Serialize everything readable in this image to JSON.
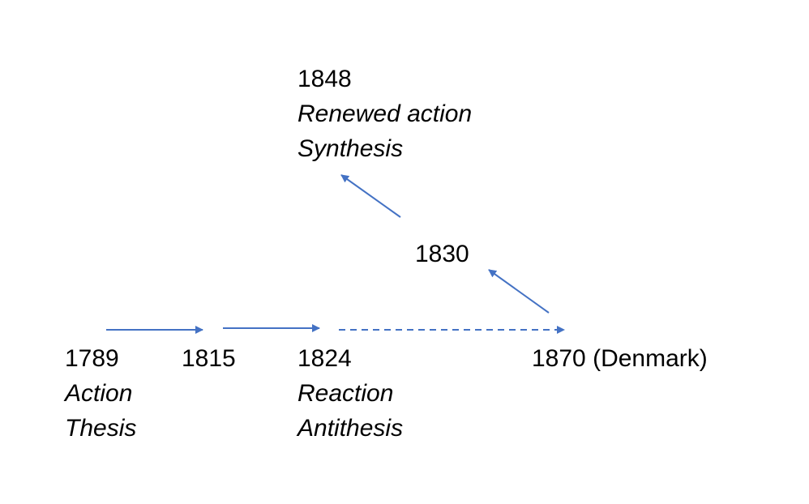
{
  "diagram": {
    "arrow_color": "#4472C4",
    "nodes": {
      "n1789": {
        "year": "1789",
        "line2": "Action",
        "line3": "Thesis"
      },
      "n1815": {
        "year": "1815"
      },
      "n1824": {
        "year": "1824",
        "line2": "Reaction",
        "line3": "Antithesis"
      },
      "n1830": {
        "year": "1830"
      },
      "n1848": {
        "year": "1848",
        "line2": "Renewed action",
        "line3": "Synthesis"
      },
      "n1870": {
        "year": "1870 (Denmark)"
      }
    },
    "arrows": [
      {
        "from": "1789",
        "to": "1815",
        "style": "solid"
      },
      {
        "from": "1815",
        "to": "1824",
        "style": "solid"
      },
      {
        "from": "1824",
        "to": "1870 (Denmark)",
        "style": "dashed"
      },
      {
        "from": "1870 (Denmark)",
        "to": "1830",
        "style": "solid"
      },
      {
        "from": "1830",
        "to": "1848",
        "style": "solid"
      }
    ]
  }
}
